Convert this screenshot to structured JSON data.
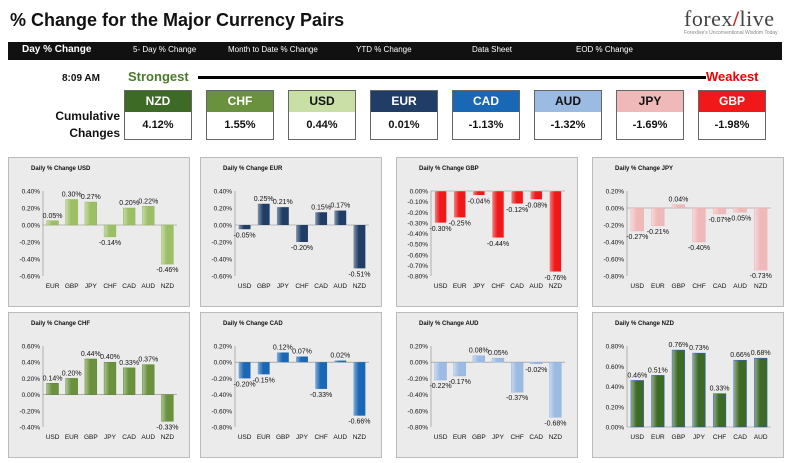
{
  "header": {
    "title": "% Change for the Major Currency Pairs",
    "logo_text": "forexlive",
    "logo_sub": "Forexlive's Unconventional Wisdom Today"
  },
  "nav": [
    "Day % Change",
    "5- Day % Change",
    "Month to Date % Change",
    "YTD % Change",
    "Data Sheet",
    "EOD % Change"
  ],
  "summary": {
    "time": "8:09 AM",
    "strongest_label": "Strongest",
    "weakest_label": "Weakest",
    "cumulative_label": "Cumulative Changes",
    "currencies": [
      {
        "name": "NZD",
        "value": "4.12%",
        "color": "#3d6b26",
        "text": "#ffffff"
      },
      {
        "name": "CHF",
        "value": "1.55%",
        "color": "#6a913e",
        "text": "#ffffff"
      },
      {
        "name": "USD",
        "value": "0.44%",
        "color": "#c9dfa6",
        "text": "#111111"
      },
      {
        "name": "EUR",
        "value": "0.01%",
        "color": "#1f3d66",
        "text": "#ffffff"
      },
      {
        "name": "CAD",
        "value": "-1.13%",
        "color": "#1967b5",
        "text": "#ffffff"
      },
      {
        "name": "AUD",
        "value": "-1.32%",
        "color": "#9cbbe2",
        "text": "#111111"
      },
      {
        "name": "JPY",
        "value": "-1.69%",
        "color": "#f0b9b9",
        "text": "#111111"
      },
      {
        "name": "GBP",
        "value": "-1.98%",
        "color": "#f01818",
        "text": "#ffffff"
      }
    ]
  },
  "chart_data": [
    {
      "type": "bar",
      "title": "Daily % Change USD",
      "categories": [
        "EUR",
        "GBP",
        "JPY",
        "CHF",
        "CAD",
        "AUD",
        "NZD"
      ],
      "values": [
        0.05,
        0.3,
        0.27,
        -0.14,
        0.2,
        0.22,
        -0.46
      ],
      "labels": [
        "0.05%",
        "0.30%",
        "0.27%",
        "-0.14%",
        "0.20%",
        "0.22%",
        "-0.46%"
      ],
      "ylim": [
        -0.6,
        0.4
      ],
      "yticks": [
        "0.40%",
        "0.20%",
        "0.00%",
        "-0.20%",
        "-0.40%",
        "-0.60%"
      ],
      "color": "#9cbf66"
    },
    {
      "type": "bar",
      "title": "Daily % Change EUR",
      "categories": [
        "USD",
        "GBP",
        "JPY",
        "CHF",
        "CAD",
        "AUD",
        "NZD"
      ],
      "values": [
        -0.05,
        0.25,
        0.21,
        -0.2,
        0.15,
        0.17,
        -0.51
      ],
      "labels": [
        "-0.05%",
        "0.25%",
        "0.21%",
        "-0.20%",
        "0.15%",
        "0.17%",
        "-0.51%"
      ],
      "ylim": [
        -0.6,
        0.4
      ],
      "yticks": [
        "0.40%",
        "0.20%",
        "0.00%",
        "-0.20%",
        "-0.40%",
        "-0.60%"
      ],
      "color": "#1f3d66"
    },
    {
      "type": "bar",
      "title": "Daily % Change GBP",
      "categories": [
        "USD",
        "EUR",
        "JPY",
        "CHF",
        "CAD",
        "AUD",
        "NZD"
      ],
      "values": [
        -0.3,
        -0.25,
        -0.04,
        -0.44,
        -0.12,
        -0.08,
        -0.76
      ],
      "labels": [
        "-0.30%",
        "-0.25%",
        "-0.04%",
        "-0.44%",
        "-0.12%",
        "-0.08%",
        "-0.76%"
      ],
      "ylim": [
        -0.8,
        0.0
      ],
      "yticks": [
        "0.00%",
        "-0.10%",
        "-0.20%",
        "-0.30%",
        "-0.40%",
        "-0.50%",
        "-0.60%",
        "-0.70%",
        "-0.80%"
      ],
      "color": "#f01818"
    },
    {
      "type": "bar",
      "title": "Daily % Change JPY",
      "categories": [
        "USD",
        "EUR",
        "GBP",
        "CHF",
        "CAD",
        "AUD",
        "NZD"
      ],
      "values": [
        -0.27,
        -0.21,
        0.04,
        -0.4,
        -0.07,
        -0.05,
        -0.73
      ],
      "labels": [
        "-0.27%",
        "-0.21%",
        "0.04%",
        "-0.40%",
        "-0.07%",
        "-0.05%",
        "-0.73%"
      ],
      "ylim": [
        -0.8,
        0.2
      ],
      "yticks": [
        "0.20%",
        "0.00%",
        "-0.20%",
        "-0.40%",
        "-0.60%",
        "-0.80%"
      ],
      "color": "#f0b9b9"
    },
    {
      "type": "bar",
      "title": "Daily % Change CHF",
      "categories": [
        "USD",
        "EUR",
        "GBP",
        "JPY",
        "CAD",
        "AUD",
        "NZD"
      ],
      "values": [
        0.14,
        0.2,
        0.44,
        0.4,
        0.33,
        0.37,
        -0.33
      ],
      "labels": [
        "0.14%",
        "0.20%",
        "0.44%",
        "0.40%",
        "0.33%",
        "0.37%",
        "-0.33%"
      ],
      "ylim": [
        -0.4,
        0.6
      ],
      "yticks": [
        "0.60%",
        "0.40%",
        "0.20%",
        "0.00%",
        "-0.20%",
        "-0.40%"
      ],
      "color": "#6a913e"
    },
    {
      "type": "bar",
      "title": "Daily % Change CAD",
      "categories": [
        "USD",
        "EUR",
        "GBP",
        "JPY",
        "CHF",
        "AUD",
        "NZD"
      ],
      "values": [
        -0.2,
        -0.15,
        0.12,
        0.07,
        -0.33,
        0.02,
        -0.66
      ],
      "labels": [
        "-0.20%",
        "-0.15%",
        "0.12%",
        "0.07%",
        "-0.33%",
        "0.02%",
        "-0.66%"
      ],
      "ylim": [
        -0.8,
        0.2
      ],
      "yticks": [
        "0.20%",
        "0.00%",
        "-0.20%",
        "-0.40%",
        "-0.60%",
        "-0.80%"
      ],
      "color": "#1967b5"
    },
    {
      "type": "bar",
      "title": "Daily % Change AUD",
      "categories": [
        "USD",
        "EUR",
        "GBP",
        "JPY",
        "CHF",
        "CAD",
        "NZD"
      ],
      "values": [
        -0.22,
        -0.17,
        0.08,
        0.05,
        -0.37,
        -0.02,
        -0.68
      ],
      "labels": [
        "-0.22%",
        "-0.17%",
        "0.08%",
        "0.05%",
        "-0.37%",
        "-0.02%",
        "-0.68%"
      ],
      "ylim": [
        -0.8,
        0.2
      ],
      "yticks": [
        "0.20%",
        "0.00%",
        "-0.20%",
        "-0.40%",
        "-0.60%",
        "-0.80%"
      ],
      "color": "#9cbbe2"
    },
    {
      "type": "bar",
      "title": "Daily % Change NZD",
      "categories": [
        "USD",
        "EUR",
        "GBP",
        "JPY",
        "CHF",
        "CAD",
        "AUD"
      ],
      "values": [
        0.46,
        0.51,
        0.76,
        0.73,
        0.33,
        0.66,
        0.68
      ],
      "labels": [
        "0.46%",
        "0.51%",
        "0.76%",
        "0.73%",
        "0.33%",
        "0.66%",
        "0.68%"
      ],
      "ylim": [
        0,
        0.8
      ],
      "yticks": [
        "0.80%",
        "0.60%",
        "0.40%",
        "0.20%",
        "0.00%"
      ],
      "color": "#3d6b26"
    }
  ]
}
